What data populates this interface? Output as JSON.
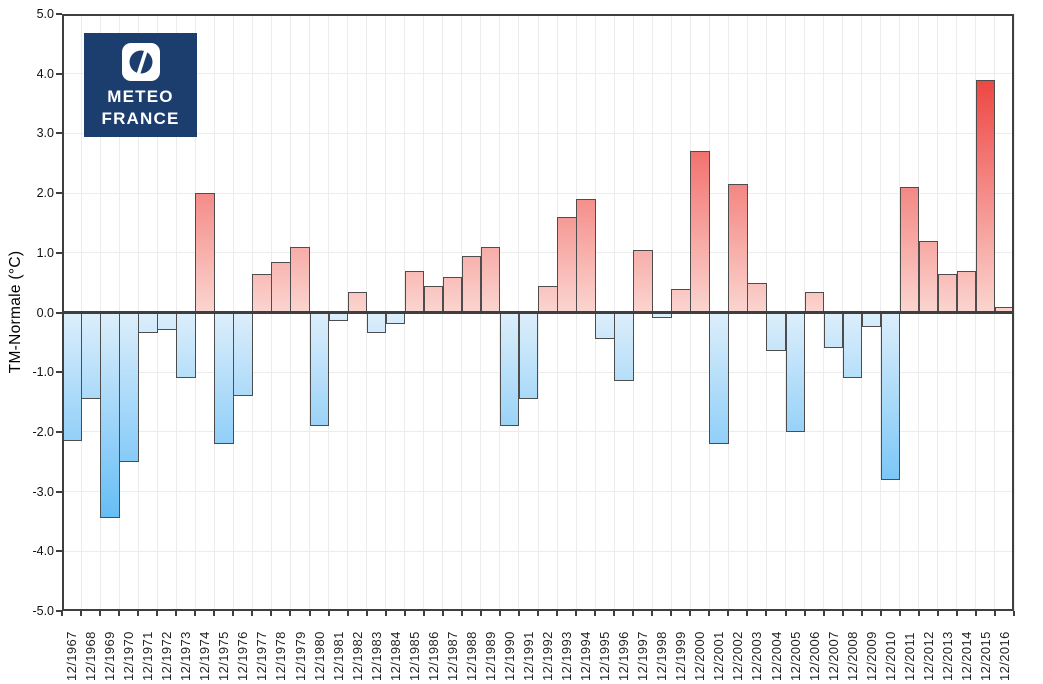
{
  "logo": {
    "line1": "METEO",
    "line2": "FRANCE",
    "bg_color": "#1b3e6e",
    "icon": "meteo-france-globe-icon"
  },
  "chart_data": {
    "type": "bar",
    "title": "",
    "xlabel": "",
    "ylabel": "TM-Normale (°C)",
    "ylim": [
      -5.0,
      5.0
    ],
    "ytick_step": 1.0,
    "grid": true,
    "legend": "none",
    "ytick_labels": [
      "5.0",
      "4.0",
      "3.0",
      "2.0",
      "1.0",
      "0.0",
      "-1.0",
      "-2.0",
      "-3.0",
      "-4.0",
      "-5.0"
    ],
    "categories": [
      "12/1967",
      "12/1968",
      "12/1969",
      "12/1970",
      "12/1971",
      "12/1972",
      "12/1973",
      "12/1974",
      "12/1975",
      "12/1976",
      "12/1977",
      "12/1978",
      "12/1979",
      "12/1980",
      "12/1981",
      "12/1982",
      "12/1983",
      "12/1984",
      "12/1985",
      "12/1986",
      "12/1987",
      "12/1988",
      "12/1989",
      "12/1990",
      "12/1991",
      "12/1992",
      "12/1993",
      "12/1994",
      "12/1995",
      "12/1996",
      "12/1997",
      "12/1998",
      "12/1999",
      "12/2000",
      "12/2001",
      "12/2002",
      "12/2003",
      "12/2004",
      "12/2005",
      "12/2006",
      "12/2007",
      "12/2008",
      "12/2009",
      "12/2010",
      "12/2011",
      "12/2012",
      "12/2013",
      "12/2014",
      "12/2015",
      "12/2016"
    ],
    "values": [
      -2.15,
      -1.45,
      -3.45,
      -2.5,
      -0.35,
      -0.3,
      -1.1,
      2.0,
      -2.2,
      -1.4,
      0.65,
      0.85,
      1.1,
      -1.9,
      -0.15,
      0.35,
      -0.35,
      -0.2,
      0.7,
      0.45,
      0.6,
      0.95,
      1.1,
      -1.9,
      -1.45,
      0.45,
      1.6,
      1.9,
      -0.45,
      -1.15,
      1.05,
      -0.1,
      0.4,
      2.7,
      -2.2,
      2.15,
      0.5,
      -0.65,
      -2.0,
      0.35,
      -0.6,
      -1.1,
      -0.25,
      -2.8,
      2.1,
      1.2,
      0.65,
      0.7,
      3.9,
      0.1
    ],
    "colors": {
      "positive_pale": "#fbd4cf",
      "positive_deep": "#ea1f1d",
      "negative_pale": "#dceefb",
      "negative_deep": "#31a8f4",
      "bar_border": "#4d4d4d",
      "zero_line": "#3f3f3f",
      "axis_frame": "#3f3f3f",
      "gridline": "#ececec",
      "tick_text": "#111111"
    }
  }
}
